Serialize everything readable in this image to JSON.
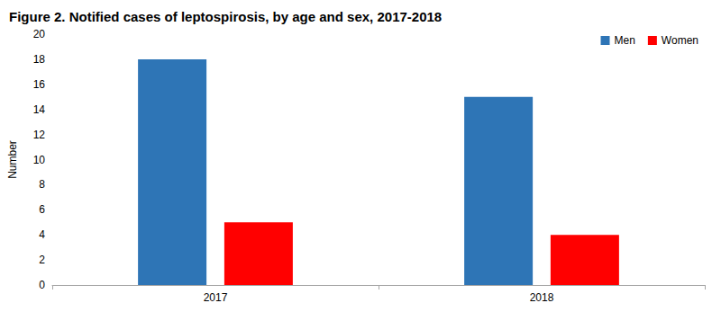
{
  "chart_data": {
    "type": "bar",
    "title": "Figure 2. Notified cases of leptospirosis, by age and sex, 2017-2018",
    "y_label": "Number",
    "categories": [
      "2017",
      "2018"
    ],
    "series": [
      {
        "name": "Men",
        "color": "#2e75b6",
        "values": [
          18,
          15
        ]
      },
      {
        "name": "Women",
        "color": "#ff0000",
        "values": [
          5,
          4
        ]
      }
    ],
    "ylim": [
      0,
      20
    ],
    "yticks": [
      0,
      2,
      4,
      6,
      8,
      10,
      12,
      14,
      16,
      18,
      20
    ],
    "grid": false,
    "legend": "upper right"
  }
}
